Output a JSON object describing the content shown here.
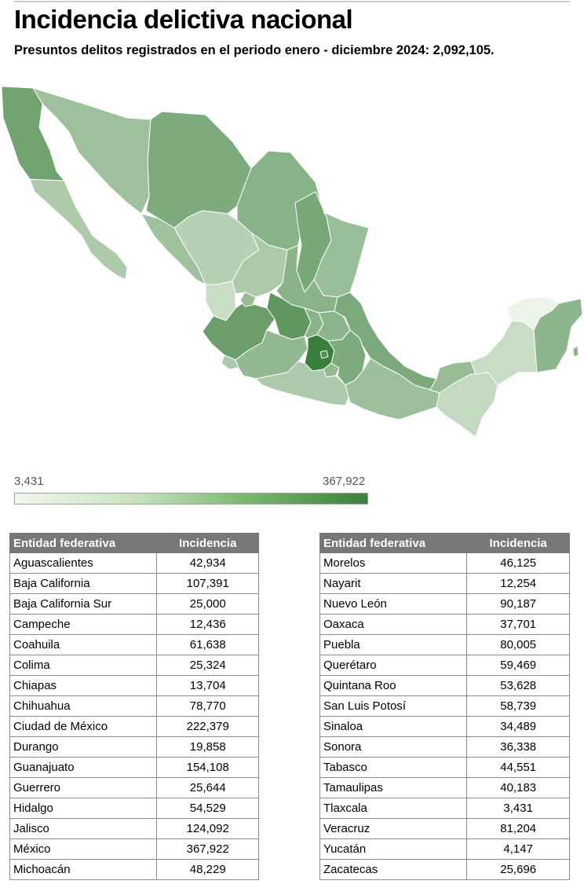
{
  "title": "Incidencia delictiva nacional",
  "subtitle": "Presuntos delitos registrados en el periodo enero - diciembre 2024: 2,092,105.",
  "legend": {
    "min": "3,431",
    "max": "367,922",
    "min_value": 3431,
    "max_value": 367922,
    "color_low": "#f1f7ee",
    "color_high": "#3b7f3c"
  },
  "table_headers": {
    "entity": "Entidad federativa",
    "value": "Incidencia"
  },
  "states_left": [
    {
      "name": "Aguascalientes",
      "incidencia": "42,934",
      "value": 42934
    },
    {
      "name": "Baja California",
      "incidencia": "107,391",
      "value": 107391
    },
    {
      "name": "Baja California Sur",
      "incidencia": "25,000",
      "value": 25000
    },
    {
      "name": "Campeche",
      "incidencia": "12,436",
      "value": 12436
    },
    {
      "name": "Coahuila",
      "incidencia": "61,638",
      "value": 61638
    },
    {
      "name": "Colima",
      "incidencia": "25,324",
      "value": 25324
    },
    {
      "name": "Chiapas",
      "incidencia": "13,704",
      "value": 13704
    },
    {
      "name": "Chihuahua",
      "incidencia": "78,770",
      "value": 78770
    },
    {
      "name": "Ciudad de México",
      "incidencia": "222,379",
      "value": 222379
    },
    {
      "name": "Durango",
      "incidencia": "19,858",
      "value": 19858
    },
    {
      "name": "Guanajuato",
      "incidencia": "154,108",
      "value": 154108
    },
    {
      "name": "Guerrero",
      "incidencia": "25,644",
      "value": 25644
    },
    {
      "name": "Hidalgo",
      "incidencia": "54,529",
      "value": 54529
    },
    {
      "name": "Jalisco",
      "incidencia": "124,092",
      "value": 124092
    },
    {
      "name": "México",
      "incidencia": "367,922",
      "value": 367922
    },
    {
      "name": "Michoacán",
      "incidencia": "48,229",
      "value": 48229
    }
  ],
  "states_right": [
    {
      "name": "Morelos",
      "incidencia": "46,125",
      "value": 46125
    },
    {
      "name": "Nayarit",
      "incidencia": "12,254",
      "value": 12254
    },
    {
      "name": "Nuevo León",
      "incidencia": "90,187",
      "value": 90187
    },
    {
      "name": "Oaxaca",
      "incidencia": "37,701",
      "value": 37701
    },
    {
      "name": "Puebla",
      "incidencia": "80,005",
      "value": 80005
    },
    {
      "name": "Querétaro",
      "incidencia": "59,469",
      "value": 59469
    },
    {
      "name": "Quintana Roo",
      "incidencia": "53,628",
      "value": 53628
    },
    {
      "name": "San Luis Potosí",
      "incidencia": "58,739",
      "value": 58739
    },
    {
      "name": "Sinaloa",
      "incidencia": "34,489",
      "value": 34489
    },
    {
      "name": "Sonora",
      "incidencia": "36,338",
      "value": 36338
    },
    {
      "name": "Tabasco",
      "incidencia": "44,551",
      "value": 44551
    },
    {
      "name": "Tamaulipas",
      "incidencia": "40,183",
      "value": 40183
    },
    {
      "name": "Tlaxcala",
      "incidencia": "3,431",
      "value": 3431
    },
    {
      "name": "Veracruz",
      "incidencia": "81,204",
      "value": 81204
    },
    {
      "name": "Yucatán",
      "incidencia": "4,147",
      "value": 4147
    },
    {
      "name": "Zacatecas",
      "incidencia": "25,696",
      "value": 25696
    }
  ]
}
